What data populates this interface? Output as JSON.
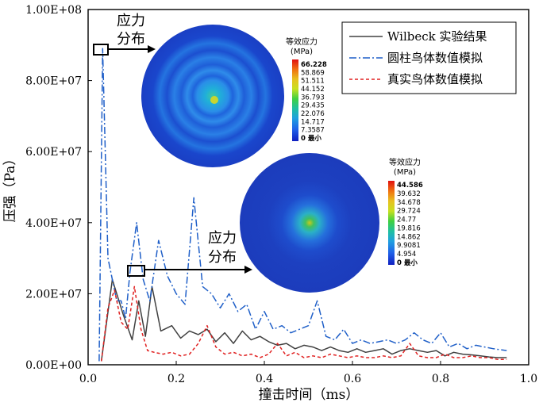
{
  "chart_data": {
    "type": "line",
    "xlabel": "撞击时间（ms）",
    "ylabel": "压强（Pa）",
    "xlim": [
      0,
      1.0
    ],
    "ylim": [
      0,
      100000000
    ],
    "xticks": [
      "0.0",
      "0.2",
      "0.4",
      "0.6",
      "0.8",
      "1.0"
    ],
    "xtick_values": [
      0,
      0.2,
      0.4,
      0.6,
      0.8,
      1.0
    ],
    "yticks": [
      "0.00E+00",
      "2.00E+07",
      "4.00E+07",
      "6.00E+07",
      "8.00E+07",
      "1.00E+08"
    ],
    "ytick_values": [
      0,
      20000000,
      40000000,
      60000000,
      80000000,
      100000000
    ],
    "legend_position": "top-right",
    "series": [
      {
        "name": "Wilbeck 实验结果",
        "color": "#404040",
        "style": "solid",
        "x": [
          0.03,
          0.055,
          0.08,
          0.1,
          0.115,
          0.13,
          0.145,
          0.165,
          0.19,
          0.21,
          0.23,
          0.25,
          0.27,
          0.29,
          0.31,
          0.33,
          0.35,
          0.37,
          0.39,
          0.41,
          0.43,
          0.45,
          0.47,
          0.49,
          0.51,
          0.53,
          0.55,
          0.57,
          0.59,
          0.61,
          0.63,
          0.65,
          0.67,
          0.69,
          0.71,
          0.73,
          0.75,
          0.77,
          0.79,
          0.81,
          0.83,
          0.85,
          0.87,
          0.89,
          0.91,
          0.93,
          0.95
        ],
        "values": [
          1000000,
          24000000,
          14000000,
          7000000,
          18000000,
          8000000,
          22000000,
          9500000,
          11000000,
          7500000,
          9500000,
          8500000,
          10000000,
          6500000,
          9000000,
          6000000,
          9500000,
          7000000,
          8000000,
          6500000,
          5500000,
          6000000,
          4500000,
          5500000,
          5000000,
          4000000,
          5000000,
          4000000,
          3500000,
          4500000,
          3500000,
          4000000,
          4500000,
          3000000,
          4000000,
          4500000,
          4000000,
          3500000,
          4000000,
          2500000,
          3500000,
          3000000,
          2800000,
          2500000,
          2200000,
          2000000,
          2000000
        ]
      },
      {
        "name": "圆柱鸟体数值模拟",
        "color": "#1f5fc8",
        "style": "dashdot",
        "x": [
          0.025,
          0.033,
          0.045,
          0.055,
          0.065,
          0.075,
          0.085,
          0.095,
          0.11,
          0.125,
          0.14,
          0.16,
          0.18,
          0.2,
          0.22,
          0.24,
          0.26,
          0.28,
          0.3,
          0.32,
          0.34,
          0.36,
          0.38,
          0.4,
          0.42,
          0.44,
          0.46,
          0.48,
          0.5,
          0.52,
          0.54,
          0.56,
          0.58,
          0.6,
          0.62,
          0.64,
          0.66,
          0.68,
          0.7,
          0.72,
          0.74,
          0.76,
          0.78,
          0.8,
          0.82,
          0.84,
          0.86,
          0.88,
          0.9,
          0.92,
          0.95
        ],
        "values": [
          1000000,
          89000000,
          30000000,
          24000000,
          18000000,
          18000000,
          13000000,
          26000000,
          40000000,
          24000000,
          18000000,
          35000000,
          25000000,
          20000000,
          17000000,
          47000000,
          22000000,
          20000000,
          16000000,
          20000000,
          15000000,
          17000000,
          10000000,
          15000000,
          10000000,
          11000000,
          9000000,
          10000000,
          11000000,
          18000000,
          8000000,
          7000000,
          10000000,
          6000000,
          7000000,
          6000000,
          6500000,
          7000000,
          6000000,
          7000000,
          9000000,
          7000000,
          6000000,
          9000000,
          5000000,
          6000000,
          4500000,
          5500000,
          5000000,
          4500000,
          4000000
        ]
      },
      {
        "name": "真实鸟体数值模拟",
        "color": "#e02020",
        "style": "dashed",
        "x": [
          0.03,
          0.045,
          0.06,
          0.075,
          0.09,
          0.105,
          0.12,
          0.135,
          0.15,
          0.17,
          0.19,
          0.21,
          0.23,
          0.25,
          0.27,
          0.29,
          0.31,
          0.33,
          0.35,
          0.37,
          0.39,
          0.41,
          0.43,
          0.45,
          0.47,
          0.49,
          0.51,
          0.53,
          0.55,
          0.57,
          0.59,
          0.61,
          0.63,
          0.65,
          0.67,
          0.69,
          0.71,
          0.73,
          0.75,
          0.77,
          0.79,
          0.81,
          0.83,
          0.85,
          0.87,
          0.89,
          0.91,
          0.93,
          0.95
        ],
        "values": [
          1000000,
          16000000,
          21000000,
          12000000,
          10000000,
          22000000,
          10000000,
          4000000,
          3500000,
          3000000,
          3500000,
          2500000,
          3000000,
          6000000,
          11000000,
          5000000,
          3000000,
          3500000,
          2500000,
          3000000,
          2000000,
          3000000,
          6000000,
          2500000,
          3500000,
          2000000,
          2500000,
          2000000,
          3000000,
          2500000,
          2000000,
          2500000,
          2000000,
          2000000,
          2500000,
          2000000,
          2500000,
          6000000,
          2500000,
          2000000,
          2000000,
          3000000,
          2000000,
          2000000,
          2500000,
          2000000,
          2000000,
          1500000,
          1500000
        ]
      }
    ],
    "annotations": [
      {
        "text": "应力\n分布",
        "x": 0.03,
        "y": 89000000
      },
      {
        "text": "应力\n分布",
        "x": 0.11,
        "y": 26000000
      }
    ],
    "insets": [
      {
        "colorbar_title": "等效应力\n(MPa)",
        "levels": [
          "66.228",
          "58.869",
          "51.511",
          "44.152",
          "36.793",
          "29.435",
          "22.076",
          "14.717",
          "7.3587",
          "0 最小"
        ]
      },
      {
        "colorbar_title": "等效应力\n(MPa)",
        "levels": [
          "44.586",
          "39.632",
          "34.678",
          "29.724",
          "24.77",
          "19.816",
          "14.862",
          "9.9081",
          "4.954",
          "0 最小"
        ]
      }
    ]
  }
}
